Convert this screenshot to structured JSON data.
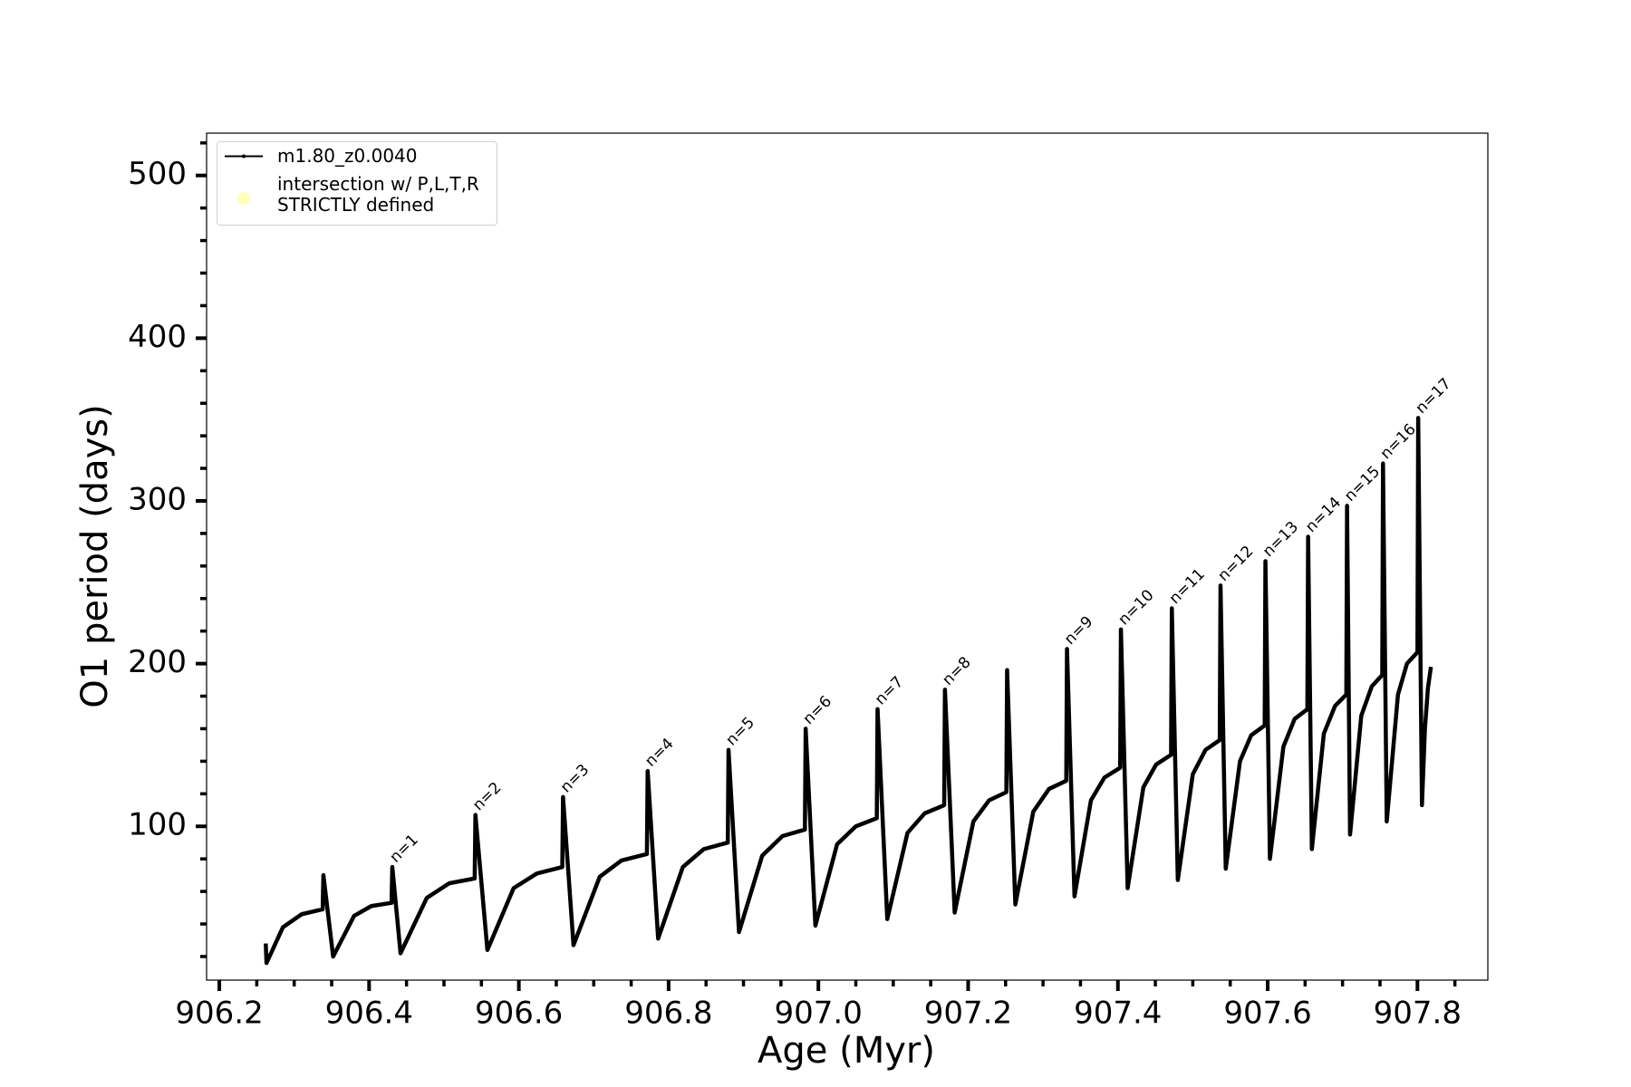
{
  "chart_data": {
    "type": "line",
    "xlabel": "Age (Myr)",
    "ylabel": "O1 period (days)",
    "xlim": [
      906.183,
      907.894
    ],
    "ylim": [
      5.5,
      526
    ],
    "xticks": [
      906.2,
      906.4,
      906.6,
      906.8,
      {
        "value": 907,
        "label": "907.0"
      },
      907.2,
      907.4,
      907.6,
      907.8
    ],
    "xminorticks": [
      906.25,
      906.3,
      906.35,
      906.45,
      906.5,
      906.55,
      906.65,
      906.7,
      906.75,
      906.85,
      906.9,
      906.95,
      907.05,
      907.1,
      907.15,
      907.25,
      907.3,
      907.35,
      907.45,
      907.5,
      907.55,
      907.65,
      907.7,
      907.75,
      907.85
    ],
    "yticks": [
      100,
      200,
      300,
      400,
      500
    ],
    "yminorticks": [
      20,
      40,
      60,
      80,
      120,
      140,
      160,
      180,
      220,
      240,
      260,
      280,
      320,
      340,
      360,
      380,
      420,
      440,
      460,
      480,
      520
    ],
    "grid": false,
    "legend": "upper left",
    "series": [
      {
        "name": "m1.80_z0.0040",
        "color": "#000000",
        "x": [
          906.262,
          906.263,
          906.285,
          906.31,
          906.338,
          906.339,
          906.352,
          906.38,
          906.403,
          906.43,
          906.431,
          906.442,
          906.477,
          906.507,
          906.541,
          906.542,
          906.558,
          906.593,
          906.624,
          906.658,
          906.659,
          906.673,
          906.708,
          906.737,
          906.771,
          906.772,
          906.786,
          906.819,
          906.847,
          906.879,
          906.88,
          906.894,
          906.925,
          906.952,
          906.982,
          906.983,
          906.996,
          907.025,
          907.05,
          907.078,
          907.079,
          907.092,
          907.119,
          907.142,
          907.168,
          907.169,
          907.182,
          907.207,
          907.228,
          907.251,
          907.252,
          907.263,
          907.287,
          907.308,
          907.331,
          907.332,
          907.342,
          907.364,
          907.382,
          907.403,
          907.404,
          907.413,
          907.434,
          907.451,
          907.471,
          907.472,
          907.48,
          907.5,
          907.517,
          907.536,
          907.537,
          907.544,
          907.563,
          907.578,
          907.596,
          907.597,
          907.603,
          907.621,
          907.636,
          907.653,
          907.654,
          907.659,
          907.675,
          907.69,
          907.705,
          907.706,
          907.71,
          907.725,
          907.739,
          907.753,
          907.754,
          907.759,
          907.774,
          907.786,
          907.8,
          907.801,
          907.806,
          907.81,
          907.814,
          907.818
        ],
        "values": [
          28,
          16,
          38,
          46,
          49,
          70,
          20,
          45,
          51,
          53,
          75,
          22,
          56,
          65,
          68,
          107,
          24,
          62,
          71,
          75,
          118,
          27,
          69,
          79,
          83,
          134,
          31,
          75,
          86,
          90,
          147,
          35,
          82,
          94,
          98,
          160,
          39,
          89,
          100,
          105,
          172,
          43,
          96,
          108,
          113,
          184,
          47,
          103,
          116,
          121,
          196,
          52,
          109,
          123,
          128,
          209,
          57,
          116,
          130,
          136,
          221,
          62,
          124,
          138,
          144,
          234,
          67,
          132,
          147,
          153,
          248,
          74,
          140,
          156,
          162,
          263,
          80,
          149,
          166,
          172,
          278,
          86,
          157,
          174,
          181,
          297,
          95,
          168,
          186,
          193,
          323,
          103,
          181,
          200,
          207,
          351,
          113,
          160,
          185,
          198
        ]
      },
      {
        "name": "intersection w/ P,L,T,R\nSTRICTLY defined",
        "color": "#ffffb3",
        "x": [],
        "values": []
      }
    ],
    "annotations": [
      {
        "text": "n=1",
        "x": 906.431,
        "y": 75
      },
      {
        "text": "n=2",
        "x": 906.542,
        "y": 107
      },
      {
        "text": "n=3",
        "x": 906.659,
        "y": 118
      },
      {
        "text": "n=4",
        "x": 906.772,
        "y": 134
      },
      {
        "text": "n=5",
        "x": 906.88,
        "y": 147
      },
      {
        "text": "n=6",
        "x": 906.983,
        "y": 160
      },
      {
        "text": "n=7",
        "x": 907.079,
        "y": 172
      },
      {
        "text": "n=8",
        "x": 907.169,
        "y": 184
      },
      {
        "text": "n=9",
        "x": 907.332,
        "y": 209
      },
      {
        "text": "n=10",
        "x": 907.404,
        "y": 221
      },
      {
        "text": "n=11",
        "x": 907.472,
        "y": 234
      },
      {
        "text": "n=12",
        "x": 907.537,
        "y": 248
      },
      {
        "text": "n=13",
        "x": 907.597,
        "y": 263
      },
      {
        "text": "n=14",
        "x": 907.654,
        "y": 278
      },
      {
        "text": "n=15",
        "x": 907.706,
        "y": 297
      },
      {
        "text": "n=16",
        "x": 907.754,
        "y": 323
      },
      {
        "text": "n=17",
        "x": 907.801,
        "y": 351
      }
    ]
  }
}
